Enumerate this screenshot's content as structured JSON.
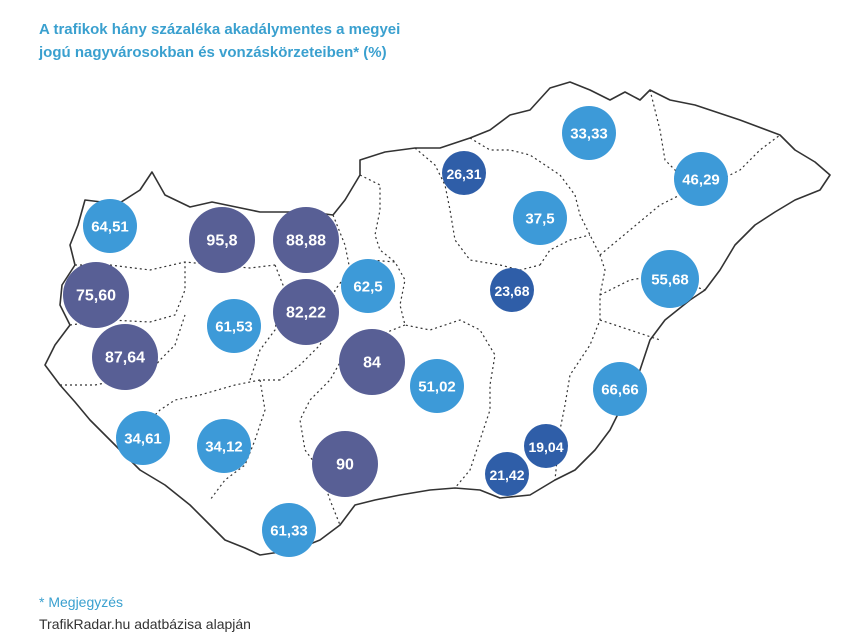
{
  "title": {
    "line1": "A trafikok hány százaléka akadálymentes a megyei",
    "line2": "jogú nagyvárosokban és vonzáskörzeteiben* (%)"
  },
  "colors": {
    "title": "#3aa0cf",
    "bubble_light": "#3d9ad8",
    "bubble_mid": "#2f5ea8",
    "bubble_dark": "#585f95",
    "map_outline": "#333333"
  },
  "cities": [
    {
      "label": "33,33",
      "value": 33.33,
      "tone": "light"
    },
    {
      "label": "26,31",
      "value": 26.31,
      "tone": "mid"
    },
    {
      "label": "46,29",
      "value": 46.29,
      "tone": "light"
    },
    {
      "label": "37,5",
      "value": 37.5,
      "tone": "light"
    },
    {
      "label": "64,51",
      "value": 64.51,
      "tone": "light"
    },
    {
      "label": "95,8",
      "value": 95.8,
      "tone": "dark"
    },
    {
      "label": "88,88",
      "value": 88.88,
      "tone": "dark"
    },
    {
      "label": "55,68",
      "value": 55.68,
      "tone": "light"
    },
    {
      "label": "62,5",
      "value": 62.5,
      "tone": "light"
    },
    {
      "label": "23,68",
      "value": 23.68,
      "tone": "mid"
    },
    {
      "label": "75,60",
      "value": 75.6,
      "tone": "dark"
    },
    {
      "label": "82,22",
      "value": 82.22,
      "tone": "dark"
    },
    {
      "label": "61,53",
      "value": 61.53,
      "tone": "light"
    },
    {
      "label": "87,64",
      "value": 87.64,
      "tone": "dark"
    },
    {
      "label": "84",
      "value": 84,
      "tone": "dark"
    },
    {
      "label": "51,02",
      "value": 51.02,
      "tone": "light"
    },
    {
      "label": "66,66",
      "value": 66.66,
      "tone": "light"
    },
    {
      "label": "34,61",
      "value": 34.61,
      "tone": "light"
    },
    {
      "label": "34,12",
      "value": 34.12,
      "tone": "light"
    },
    {
      "label": "19,04",
      "value": 19.04,
      "tone": "mid"
    },
    {
      "label": "90",
      "value": 90,
      "tone": "dark"
    },
    {
      "label": "21,42",
      "value": 21.42,
      "tone": "mid"
    },
    {
      "label": "61,33",
      "value": 61.33,
      "tone": "light"
    }
  ],
  "footer": {
    "note": "* Megjegyzés",
    "source": "TrafikRadar.hu adatbázisa alapján"
  }
}
